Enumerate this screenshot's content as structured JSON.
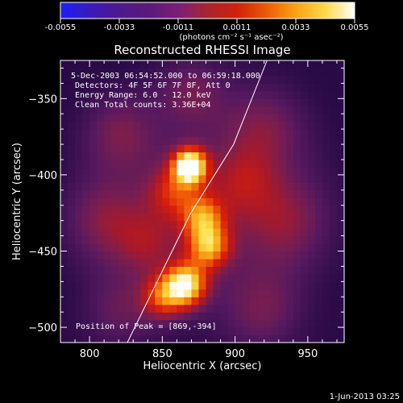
{
  "colorbar": {
    "tick_labels": [
      "-0.0055",
      "-0.0033",
      "-0.0011",
      "0.0011",
      "0.0033",
      "0.0055"
    ],
    "unit_label": "(photons cm⁻² s⁻¹ asec⁻²)",
    "colormap": [
      "#1d1dff",
      "#3a1bb8",
      "#4d1a8c",
      "#5a1a7a",
      "#7a1f78",
      "#a8262e",
      "#d2200a",
      "#ec5a06",
      "#f7a312",
      "#ffd84a",
      "#ffffff"
    ]
  },
  "plot": {
    "title": "Reconstructed RHESSI Image",
    "info_lines": [
      "5-Dec-2003 06:54:52.000 to 06:59:18.000",
      "Detectors: 4F 5F 6F 7F 8F, Att 0",
      "Energy Range: 6.0 - 12.0 keV",
      "Clean     Total counts: 3.36E+04"
    ],
    "peak_label": "Position of Peak = [869,-394]",
    "footer_timestamp": "1-Jun-2013 03:25"
  },
  "chart_data": {
    "type": "heatmap",
    "title": "Reconstructed RHESSI Image",
    "xlabel": "Heliocentric X (arcsec)",
    "ylabel": "Heliocentric Y (arcsec)",
    "xlim": [
      780,
      975
    ],
    "ylim": [
      -510,
      -325
    ],
    "x_ticks": [
      800,
      850,
      900,
      950
    ],
    "x_tick_labels": [
      "800",
      "850",
      "900",
      "950"
    ],
    "y_ticks": [
      -350,
      -400,
      -450,
      -500
    ],
    "y_tick_labels": [
      "−350",
      "−400",
      "−450",
      "−500"
    ],
    "background_level": 0.22,
    "sources": [
      {
        "x": 869,
        "y": -394,
        "intensity": 1.0,
        "sigma": 8
      },
      {
        "x": 858,
        "y": -411,
        "intensity": 0.35,
        "sigma": 12
      },
      {
        "x": 878,
        "y": -428,
        "intensity": 0.5,
        "sigma": 10
      },
      {
        "x": 882,
        "y": -447,
        "intensity": 0.62,
        "sigma": 10
      },
      {
        "x": 866,
        "y": -472,
        "intensity": 0.85,
        "sigma": 10
      },
      {
        "x": 850,
        "y": -480,
        "intensity": 0.45,
        "sigma": 10
      }
    ],
    "diffuse_blobs": [
      {
        "x": 820,
        "y": -372,
        "intensity": 0.22,
        "sigma": 18
      },
      {
        "x": 920,
        "y": -370,
        "intensity": 0.22,
        "sigma": 20
      },
      {
        "x": 935,
        "y": -430,
        "intensity": 0.24,
        "sigma": 22
      },
      {
        "x": 810,
        "y": -430,
        "intensity": 0.24,
        "sigma": 20
      },
      {
        "x": 820,
        "y": -490,
        "intensity": 0.2,
        "sigma": 18
      },
      {
        "x": 920,
        "y": -490,
        "intensity": 0.22,
        "sigma": 20
      },
      {
        "x": 870,
        "y": -345,
        "intensity": 0.2,
        "sigma": 16
      },
      {
        "x": 905,
        "y": -405,
        "intensity": 0.2,
        "sigma": 15
      },
      {
        "x": 840,
        "y": -445,
        "intensity": 0.2,
        "sigma": 15
      }
    ],
    "limb_line": [
      [
        826,
        -510
      ],
      [
        869,
        -426
      ],
      [
        899,
        -380
      ],
      [
        922,
        -325
      ]
    ],
    "peak_position": [
      869,
      -394
    ]
  }
}
